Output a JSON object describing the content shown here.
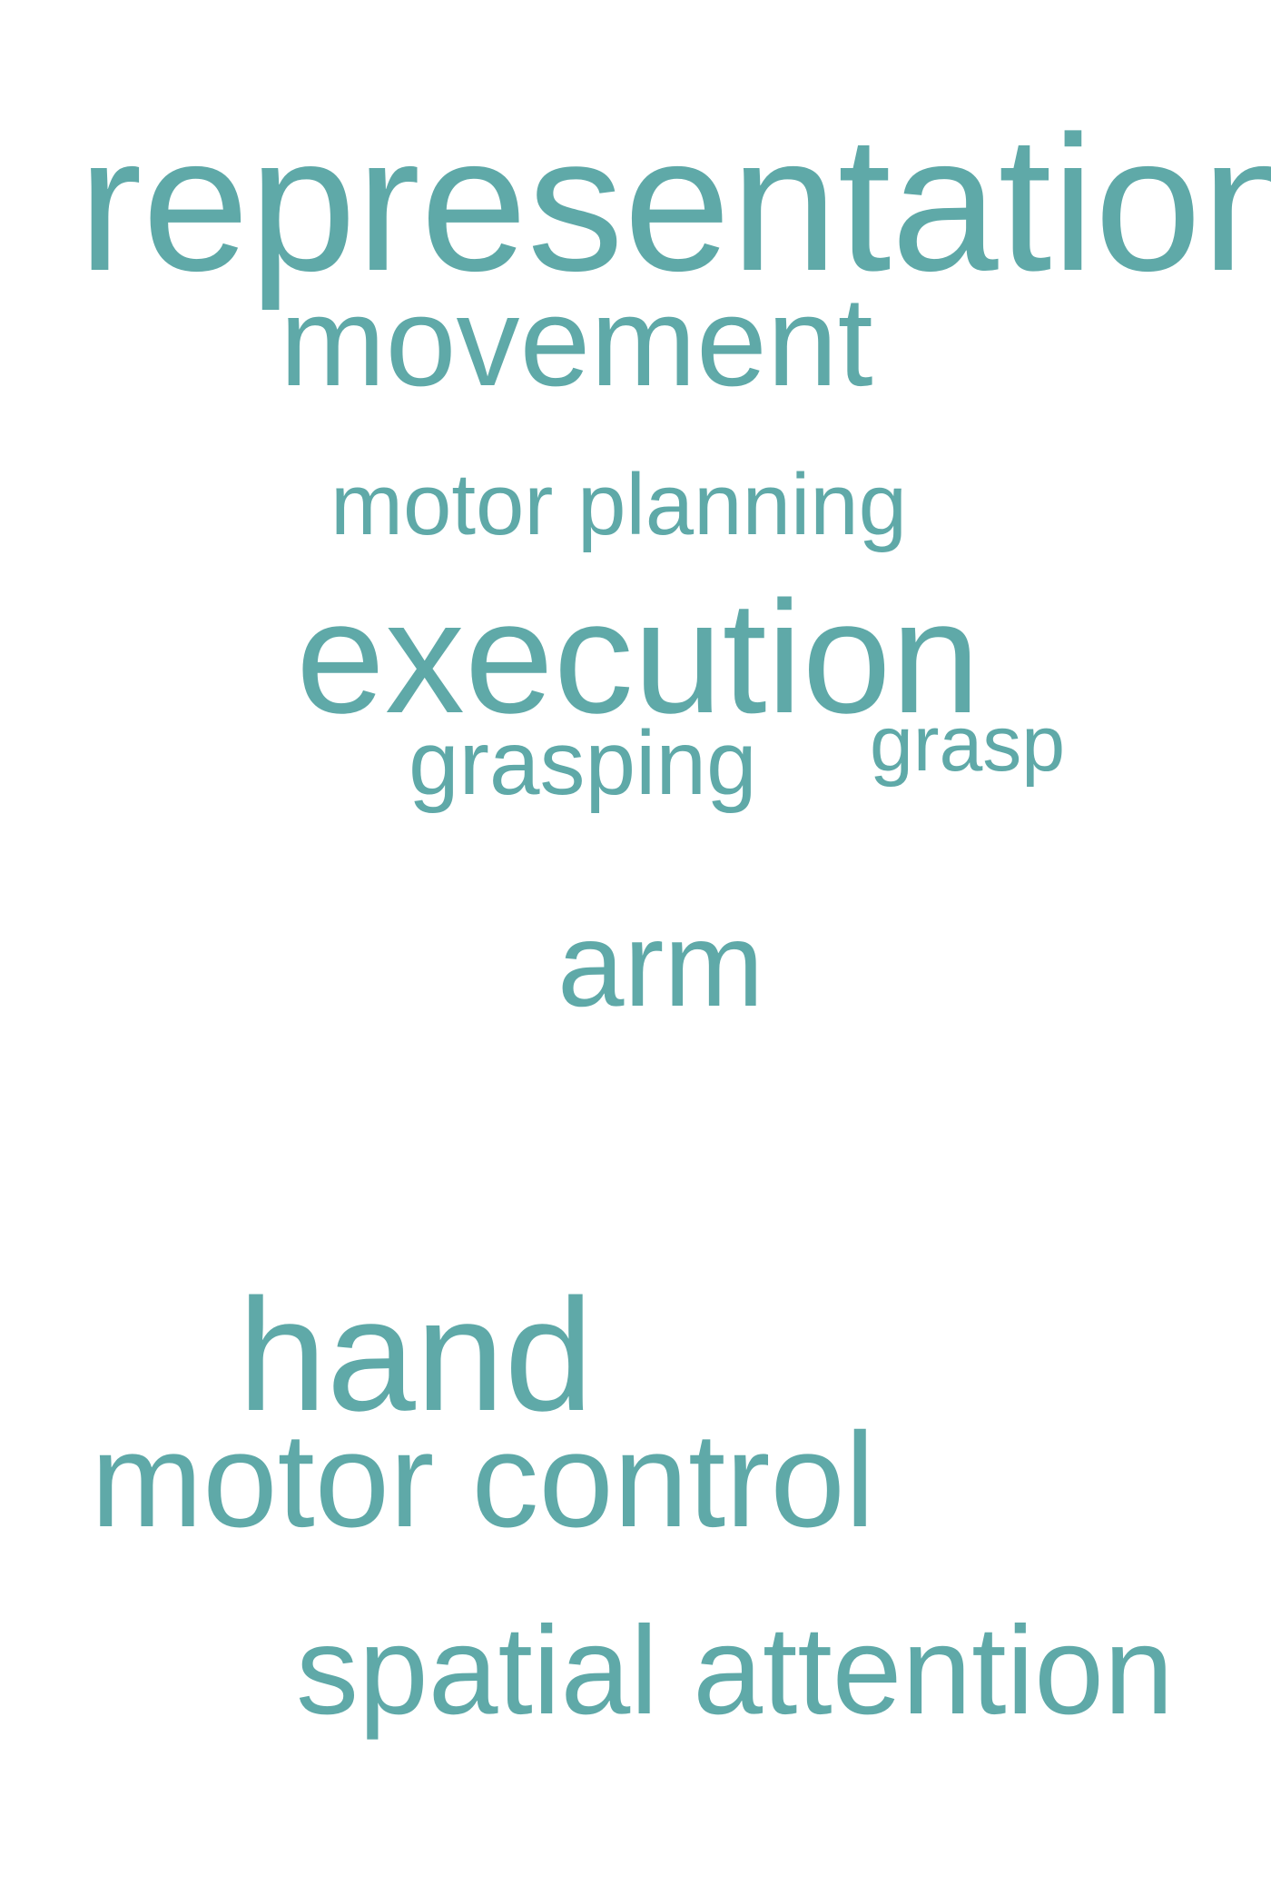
{
  "theme": {
    "word_color": "#5fa9a8",
    "background": "#ffffff"
  },
  "words": [
    {
      "id": "representation",
      "text": "representation"
    },
    {
      "id": "movement",
      "text": "movement"
    },
    {
      "id": "motor_planning",
      "text": "motor planning"
    },
    {
      "id": "execution",
      "text": "execution"
    },
    {
      "id": "grasping",
      "text": "grasping"
    },
    {
      "id": "grasp",
      "text": "grasp"
    },
    {
      "id": "arm",
      "text": "arm"
    },
    {
      "id": "hand",
      "text": "hand"
    },
    {
      "id": "motor_control",
      "text": "motor control"
    },
    {
      "id": "spatial_attention",
      "text": "spatial attention"
    }
  ]
}
